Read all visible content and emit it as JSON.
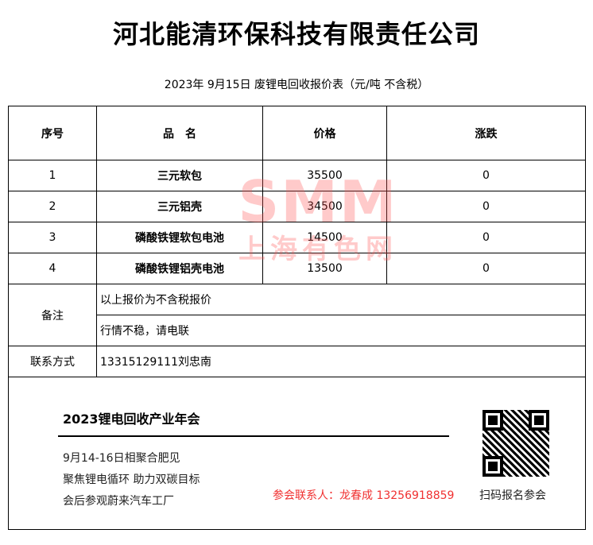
{
  "title": "河北能清环保科技有限责任公司",
  "subtitle": "2023年 9月15日 废锂电回收报价表（元/吨  不含税）",
  "headers": [
    "序号",
    "品　名",
    "价格",
    "涨跌"
  ],
  "rows": [
    {
      "no": "1",
      "name": "三元软包",
      "price": "35500",
      "change": "0"
    },
    {
      "no": "2",
      "name": "三元铝壳",
      "price": "34500",
      "change": "0"
    },
    {
      "no": "3",
      "name": "磷酸铁锂软包电池",
      "price": "14500",
      "change": "0"
    },
    {
      "no": "4",
      "name": "磷酸铁锂铝壳电池",
      "price": "13500",
      "change": "0"
    }
  ],
  "notes_label": "备注",
  "notes": [
    "以上报价为不含税报价",
    "行情不稳，请电联"
  ],
  "contact_label": "联系方式",
  "contact": "13315129111刘忠南",
  "watermark": {
    "line1": "SMM",
    "line2": "上海有色网"
  },
  "banner": {
    "title": "2023锂电回收产业年会",
    "lines": [
      "9月14-16日相聚合肥见",
      "聚焦锂电循环  助力双碳目标",
      "会后参观蔚来汽车工厂"
    ],
    "contact": "参会联系人：龙春成 13256918859",
    "qr_caption": "扫码报名参会"
  }
}
